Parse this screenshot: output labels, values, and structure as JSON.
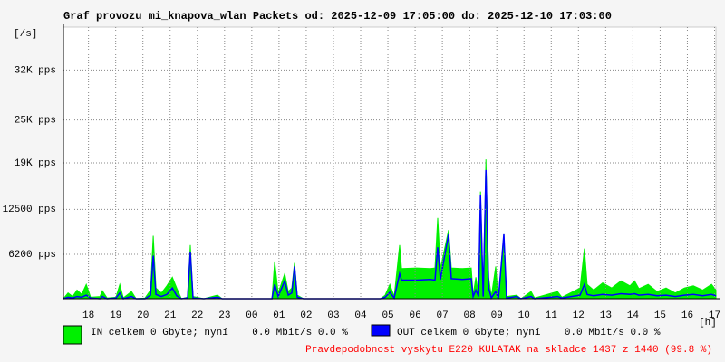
{
  "chart_data": {
    "type": "area-line",
    "title": "Graf provozu mi_knapova_wlan Packets od: 2025-12-09 17:05:00 do: 2025-12-10 17:03:00",
    "y_label": "[/s]",
    "x_label": "[h]",
    "footnote": "Pravdepodobnost vyskytu E220 KULATAK na skladce 1437 z 1440 (99.8 %)",
    "grid": true,
    "xlim": [
      17.08,
      41.05
    ],
    "ylim": [
      0,
      38000
    ],
    "xticks": [
      18,
      19,
      20,
      21,
      22,
      23,
      {
        "value": 24,
        "label": "00"
      },
      {
        "value": 25,
        "label": "01"
      },
      {
        "value": 26,
        "label": "02"
      },
      {
        "value": 27,
        "label": "03"
      },
      {
        "value": 28,
        "label": "04"
      },
      {
        "value": 29,
        "label": "05"
      },
      {
        "value": 30,
        "label": "06"
      },
      {
        "value": 31,
        "label": "07"
      },
      {
        "value": 32,
        "label": "08"
      },
      {
        "value": 33,
        "label": "09"
      },
      {
        "value": 34,
        "label": "10"
      },
      {
        "value": 35,
        "label": "11"
      },
      {
        "value": 36,
        "label": "12"
      },
      {
        "value": 37,
        "label": "13"
      },
      {
        "value": 38,
        "label": "14"
      },
      {
        "value": 39,
        "label": "15"
      },
      {
        "value": 40,
        "label": "16"
      },
      {
        "value": 41,
        "label": "17"
      }
    ],
    "yticks": [
      {
        "value": 6200,
        "label": "6200 pps"
      },
      {
        "value": 12500,
        "label": "12500 pps"
      },
      {
        "value": 19000,
        "label": "19K pps"
      },
      {
        "value": 25000,
        "label": "25K pps"
      },
      {
        "value": 32000,
        "label": "32K pps"
      }
    ],
    "x": [
      17.08,
      17.25,
      17.42,
      17.58,
      17.75,
      17.92,
      18.08,
      18.42,
      18.51,
      18.68,
      19.01,
      19.15,
      19.28,
      19.58,
      19.75,
      20.08,
      20.28,
      20.38,
      20.48,
      20.68,
      20.88,
      21.08,
      21.24,
      21.41,
      21.64,
      21.74,
      21.84,
      22.24,
      22.74,
      22.91,
      24.74,
      24.84,
      24.97,
      25.21,
      25.34,
      25.47,
      25.57,
      25.67,
      25.9,
      28.73,
      28.9,
      29.07,
      29.23,
      29.43,
      29.5,
      30.06,
      30.56,
      30.73,
      30.83,
      30.93,
      31.23,
      31.33,
      31.73,
      32.06,
      32.13,
      32.23,
      32.33,
      32.4,
      32.5,
      32.6,
      32.7,
      32.8,
      32.96,
      33.06,
      33.26,
      33.36,
      33.73,
      33.89,
      34.26,
      34.39,
      35.23,
      35.39,
      36.06,
      36.22,
      36.32,
      36.56,
      36.89,
      37.22,
      37.56,
      37.89,
      38.06,
      38.22,
      38.56,
      38.89,
      39.22,
      39.56,
      39.89,
      40.22,
      40.56,
      40.89,
      41.05
    ],
    "series": [
      {
        "name": "IN celkem 0 Gbyte; nyní    0.0 Mbit/s 0.0 %",
        "color": "#00f000",
        "style": "area",
        "values": [
          0,
          800,
          300,
          1200,
          600,
          2000,
          200,
          300,
          1100,
          100,
          200,
          2000,
          100,
          1000,
          0,
          100,
          1200,
          8800,
          1500,
          800,
          1800,
          3000,
          1500,
          0,
          200,
          7500,
          300,
          0,
          500,
          0,
          0,
          5200,
          800,
          3500,
          1000,
          1500,
          5000,
          500,
          0,
          0,
          500,
          2000,
          300,
          7500,
          4200,
          4300,
          4200,
          4300,
          11300,
          4200,
          9600,
          4300,
          4200,
          4300,
          500,
          3000,
          500,
          15000,
          500,
          19500,
          3000,
          300,
          4500,
          200,
          9000,
          300,
          500,
          0,
          1000,
          100,
          1000,
          200,
          1500,
          7000,
          2000,
          1200,
          2200,
          1500,
          2500,
          1800,
          2500,
          1400,
          2000,
          1000,
          1500,
          800,
          1500,
          1800,
          1200,
          2000,
          1200
        ]
      },
      {
        "name": "OUT celkem 0 Gbyte; nyní    0.0 Mbit/s 0.0 %",
        "color": "#0000ff",
        "style": "line",
        "values": [
          0,
          200,
          100,
          300,
          200,
          500,
          100,
          0,
          300,
          0,
          100,
          800,
          0,
          300,
          0,
          0,
          500,
          6000,
          600,
          300,
          600,
          1500,
          400,
          0,
          100,
          6500,
          100,
          0,
          200,
          0,
          0,
          2000,
          300,
          2500,
          500,
          800,
          4500,
          200,
          0,
          0,
          200,
          900,
          100,
          3500,
          2600,
          2600,
          2700,
          2600,
          7200,
          2700,
          9000,
          2800,
          2700,
          2800,
          300,
          1200,
          300,
          14500,
          300,
          18000,
          1500,
          100,
          1000,
          0,
          9000,
          100,
          300,
          0,
          300,
          0,
          300,
          100,
          500,
          2000,
          600,
          400,
          600,
          500,
          700,
          600,
          700,
          500,
          600,
          400,
          500,
          300,
          500,
          600,
          400,
          600,
          400
        ]
      }
    ]
  }
}
